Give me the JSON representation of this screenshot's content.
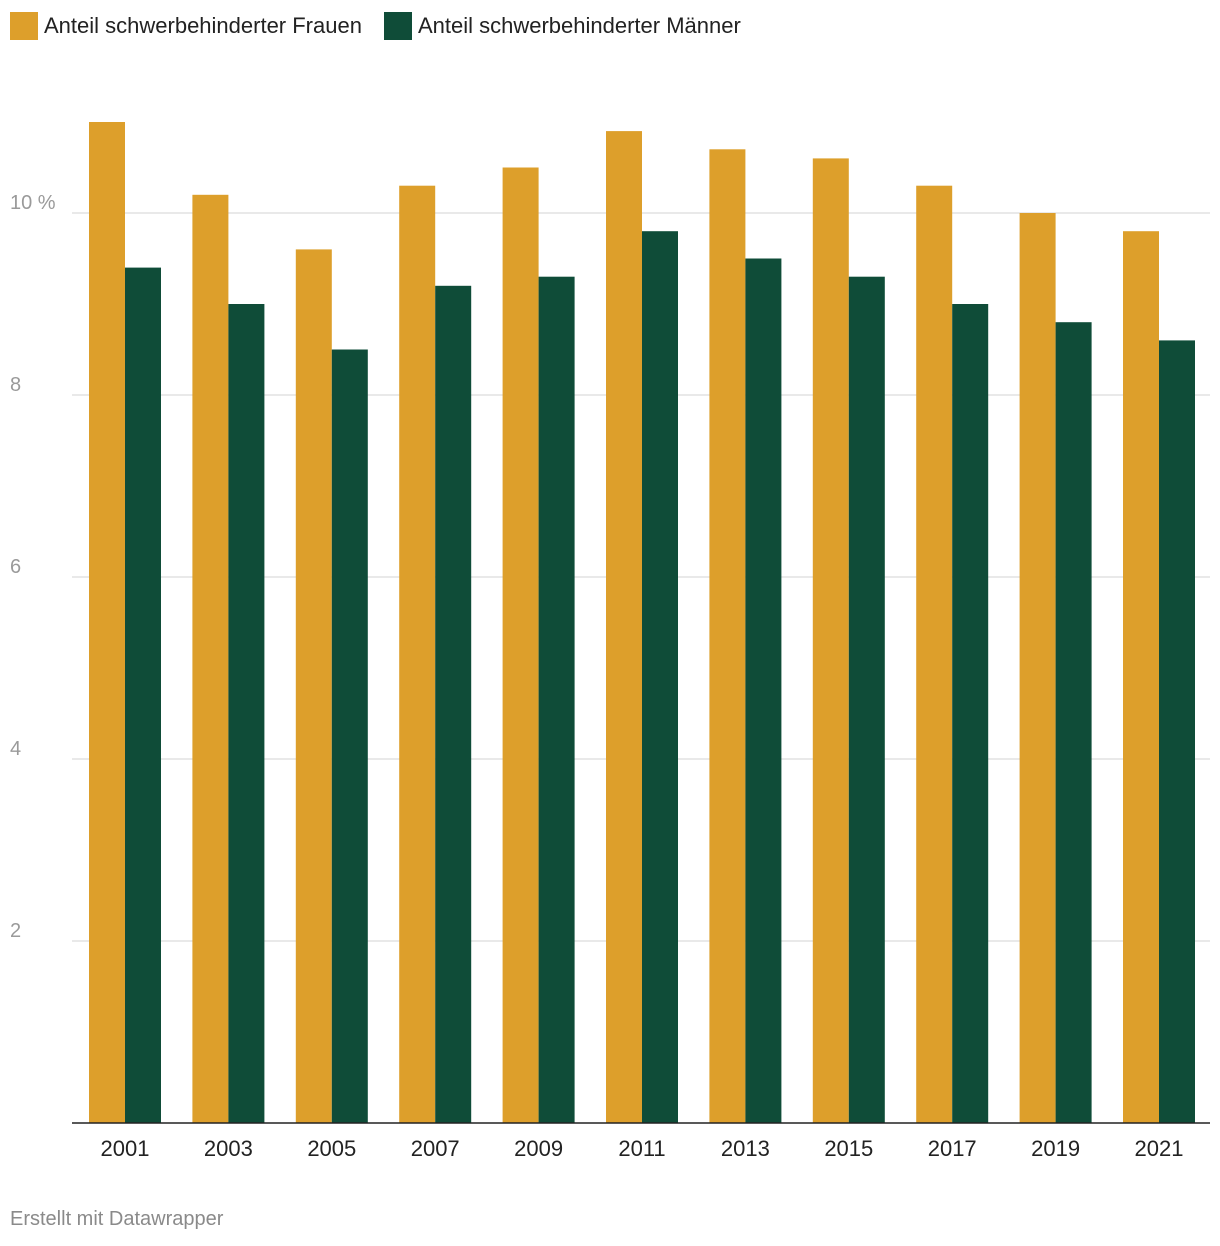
{
  "chart_data": {
    "type": "bar",
    "categories": [
      "2001",
      "2003",
      "2005",
      "2007",
      "2009",
      "2011",
      "2013",
      "2015",
      "2017",
      "2019",
      "2021"
    ],
    "series": [
      {
        "name": "Anteil schwerbehinderter Frauen",
        "color": "#dd9f2b",
        "values": [
          11.0,
          10.2,
          9.6,
          10.3,
          10.5,
          10.9,
          10.7,
          10.6,
          10.3,
          10.0,
          9.8
        ]
      },
      {
        "name": "Anteil schwerbehinderter Männer",
        "color": "#0f4c38",
        "values": [
          9.4,
          9.0,
          8.5,
          9.2,
          9.3,
          9.8,
          9.5,
          9.3,
          9.0,
          8.8,
          8.6
        ]
      }
    ],
    "ylim": [
      0,
      11.6
    ],
    "yticks": [
      {
        "value": 2,
        "label": "2"
      },
      {
        "value": 4,
        "label": "4"
      },
      {
        "value": 6,
        "label": "6"
      },
      {
        "value": 8,
        "label": "8"
      },
      {
        "value": 10,
        "label": "10 %"
      }
    ],
    "grid": true,
    "legend": "top-left"
  },
  "legend": {
    "frauen": "Anteil schwerbehinderter Frauen",
    "maenner": "Anteil schwerbehinderter Männer"
  },
  "footer": "Erstellt mit Datawrapper"
}
